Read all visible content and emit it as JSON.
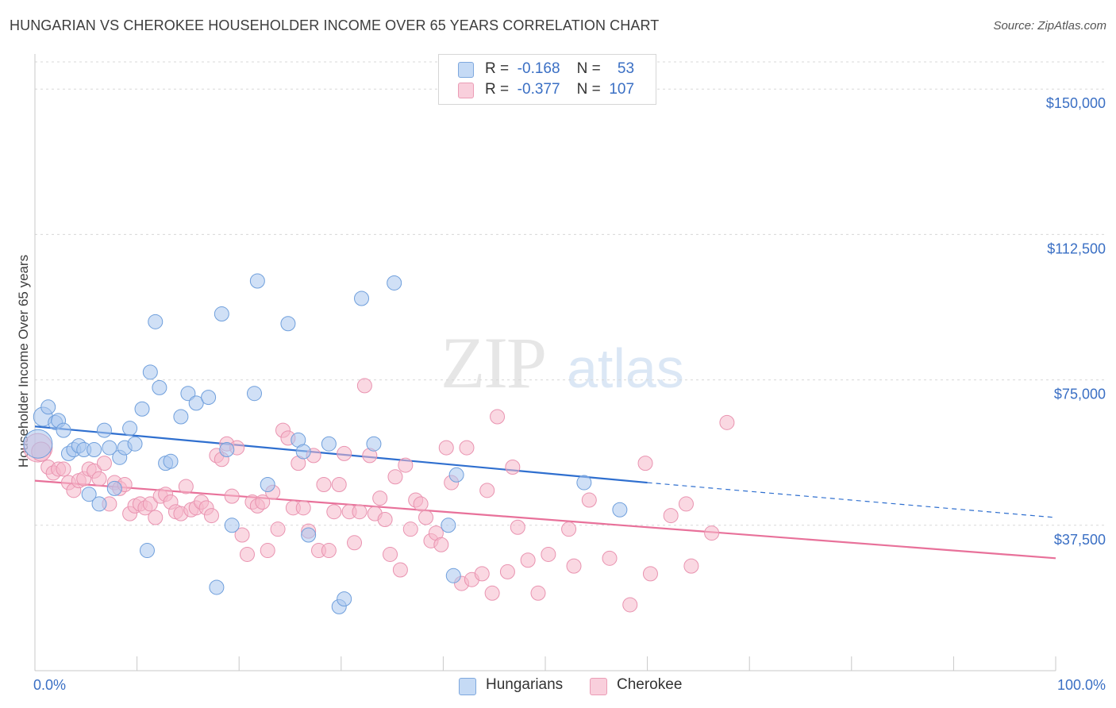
{
  "header": {
    "title": "HUNGARIAN VS CHEROKEE HOUSEHOLDER INCOME OVER 65 YEARS CORRELATION CHART",
    "source": "Source: ZipAtlas.com"
  },
  "watermark": {
    "zip": "ZIP",
    "atlas": "atlas"
  },
  "legend": {
    "rows": [
      {
        "r_label": "R =",
        "r_value": "-0.168",
        "n_label": "N =",
        "n_value": "53",
        "color": "#a9c7ef"
      },
      {
        "r_label": "R =",
        "r_value": "-0.377",
        "n_label": "N =",
        "n_value": "107",
        "color": "#f5b8cb"
      }
    ]
  },
  "bottom_legend": [
    {
      "label": "Hungarians",
      "color": "#a9c7ef"
    },
    {
      "label": "Cherokee",
      "color": "#f5b8cb"
    }
  ],
  "colors": {
    "hungarians_fill": "#a9c7ef",
    "hungarians_stroke": "#6f9fdc",
    "hungarians_line": "#2f6fcf",
    "cherokee_fill": "#f5b8cb",
    "cherokee_stroke": "#e993b0",
    "cherokee_line": "#e8719a",
    "axis_text": "#3a6fc4",
    "grid": "#d8d8d8"
  },
  "chart_data": {
    "type": "scatter",
    "title": "HUNGARIAN VS CHEROKEE HOUSEHOLDER INCOME OVER 65 YEARS CORRELATION CHART",
    "xlabel": "",
    "ylabel": "Householder Income Over 65 years",
    "xlim": [
      0,
      100
    ],
    "ylim": [
      0,
      157000
    ],
    "x_tick_labels": [
      "0.0%",
      "100.0%"
    ],
    "y_ticks": [
      37500,
      75000,
      112500,
      150000
    ],
    "y_tick_labels": [
      "$37,500",
      "$75,000",
      "$112,500",
      "$150,000"
    ],
    "grid": true,
    "legend_position": "top-center",
    "series": [
      {
        "name": "Hungarians",
        "r": -0.168,
        "n": 53,
        "trend": {
          "x": [
            0,
            60,
            100
          ],
          "y": [
            63000,
            48500,
            39500
          ],
          "solid_until": 60
        },
        "points": [
          [
            0.3,
            58500,
            "large"
          ],
          [
            0.8,
            65500,
            "mid"
          ],
          [
            1.3,
            68000
          ],
          [
            2.0,
            64000
          ],
          [
            2.3,
            64500
          ],
          [
            2.8,
            62000
          ],
          [
            3.3,
            56000
          ],
          [
            3.8,
            57000
          ],
          [
            4.3,
            58000
          ],
          [
            4.8,
            57000
          ],
          [
            5.3,
            45500
          ],
          [
            5.8,
            57000
          ],
          [
            6.3,
            43000
          ],
          [
            6.8,
            62000
          ],
          [
            7.3,
            57500
          ],
          [
            7.8,
            47000
          ],
          [
            8.3,
            55000
          ],
          [
            8.8,
            57500
          ],
          [
            9.3,
            62500
          ],
          [
            9.8,
            58500
          ],
          [
            10.5,
            67500
          ],
          [
            11.0,
            31000
          ],
          [
            11.3,
            77000
          ],
          [
            11.8,
            90000
          ],
          [
            12.2,
            73000
          ],
          [
            12.8,
            53500
          ],
          [
            13.3,
            54000
          ],
          [
            14.3,
            65500
          ],
          [
            15.0,
            71500
          ],
          [
            15.8,
            69000
          ],
          [
            17.0,
            70500
          ],
          [
            17.8,
            21500
          ],
          [
            18.3,
            92000
          ],
          [
            18.8,
            57000
          ],
          [
            19.3,
            37500
          ],
          [
            21.5,
            71500
          ],
          [
            21.8,
            100500
          ],
          [
            22.8,
            48000
          ],
          [
            24.8,
            89500
          ],
          [
            25.8,
            59500
          ],
          [
            26.3,
            56500
          ],
          [
            26.8,
            35000
          ],
          [
            29.8,
            16500
          ],
          [
            30.3,
            18500
          ],
          [
            28.8,
            58500
          ],
          [
            32.0,
            96000
          ],
          [
            33.2,
            58500
          ],
          [
            35.2,
            100000
          ],
          [
            40.5,
            37500
          ],
          [
            41.0,
            24500
          ],
          [
            41.3,
            50500
          ],
          [
            53.8,
            48500
          ],
          [
            57.3,
            41500
          ]
        ]
      },
      {
        "name": "Cherokee",
        "r": -0.377,
        "n": 107,
        "trend": {
          "x": [
            0,
            100
          ],
          "y": [
            49000,
            29000
          ]
        },
        "points": [
          [
            0.3,
            57500,
            "large"
          ],
          [
            0.6,
            56500,
            "mid"
          ],
          [
            1.3,
            52500
          ],
          [
            1.8,
            51000
          ],
          [
            2.3,
            52000
          ],
          [
            2.8,
            52000
          ],
          [
            3.3,
            48500
          ],
          [
            3.8,
            46500
          ],
          [
            4.3,
            49000
          ],
          [
            4.8,
            49500
          ],
          [
            5.3,
            52000
          ],
          [
            5.8,
            51500
          ],
          [
            6.3,
            49500
          ],
          [
            6.8,
            53500
          ],
          [
            7.3,
            43000
          ],
          [
            7.8,
            48500
          ],
          [
            8.3,
            47000
          ],
          [
            8.8,
            48000
          ],
          [
            9.3,
            40500
          ],
          [
            9.8,
            42500
          ],
          [
            10.3,
            43000
          ],
          [
            10.8,
            42000
          ],
          [
            11.3,
            43000
          ],
          [
            11.8,
            39500
          ],
          [
            12.3,
            45000
          ],
          [
            12.8,
            45500
          ],
          [
            13.3,
            43500
          ],
          [
            13.8,
            41000
          ],
          [
            14.3,
            40500
          ],
          [
            14.8,
            47500
          ],
          [
            15.3,
            41500
          ],
          [
            15.8,
            42000
          ],
          [
            16.3,
            43500
          ],
          [
            16.8,
            42000
          ],
          [
            17.3,
            40000
          ],
          [
            17.8,
            55500
          ],
          [
            18.3,
            54500
          ],
          [
            18.8,
            58500
          ],
          [
            19.3,
            45000
          ],
          [
            19.8,
            57500
          ],
          [
            20.3,
            35000
          ],
          [
            20.8,
            30000
          ],
          [
            21.3,
            43500
          ],
          [
            21.8,
            42500
          ],
          [
            22.3,
            43500
          ],
          [
            22.8,
            31000
          ],
          [
            23.3,
            46000
          ],
          [
            23.8,
            36500
          ],
          [
            24.3,
            62000
          ],
          [
            24.8,
            60000
          ],
          [
            25.3,
            42000
          ],
          [
            25.8,
            53500
          ],
          [
            26.3,
            42000
          ],
          [
            26.8,
            36000
          ],
          [
            27.3,
            55500
          ],
          [
            27.8,
            31000
          ],
          [
            28.3,
            48000
          ],
          [
            28.8,
            31000
          ],
          [
            29.3,
            41000
          ],
          [
            29.8,
            48000
          ],
          [
            30.3,
            56000
          ],
          [
            30.8,
            41000
          ],
          [
            31.3,
            33000
          ],
          [
            31.8,
            41000
          ],
          [
            32.3,
            73500
          ],
          [
            32.8,
            55500
          ],
          [
            33.3,
            40500
          ],
          [
            33.8,
            44500
          ],
          [
            34.3,
            39000
          ],
          [
            34.8,
            30000
          ],
          [
            35.3,
            50000
          ],
          [
            35.8,
            26000
          ],
          [
            36.3,
            53000
          ],
          [
            36.8,
            36500
          ],
          [
            37.3,
            44000
          ],
          [
            37.8,
            43000
          ],
          [
            38.3,
            39500
          ],
          [
            38.8,
            33500
          ],
          [
            39.3,
            35500
          ],
          [
            39.8,
            32500
          ],
          [
            40.3,
            57500
          ],
          [
            40.8,
            48500
          ],
          [
            41.8,
            22500
          ],
          [
            42.3,
            57500
          ],
          [
            42.8,
            23500
          ],
          [
            43.8,
            25000
          ],
          [
            44.3,
            46500
          ],
          [
            44.8,
            20000
          ],
          [
            45.3,
            65500
          ],
          [
            46.3,
            25500
          ],
          [
            46.8,
            52500
          ],
          [
            47.3,
            37000
          ],
          [
            48.3,
            28500
          ],
          [
            49.3,
            20000
          ],
          [
            50.3,
            30000
          ],
          [
            52.3,
            36500
          ],
          [
            52.8,
            27000
          ],
          [
            54.3,
            44000
          ],
          [
            56.3,
            29000
          ],
          [
            58.3,
            17000
          ],
          [
            59.8,
            53500
          ],
          [
            60.3,
            25000
          ],
          [
            62.3,
            40000
          ],
          [
            63.8,
            43000
          ],
          [
            64.3,
            27000
          ],
          [
            66.3,
            35500
          ],
          [
            67.8,
            64000
          ]
        ]
      }
    ]
  }
}
